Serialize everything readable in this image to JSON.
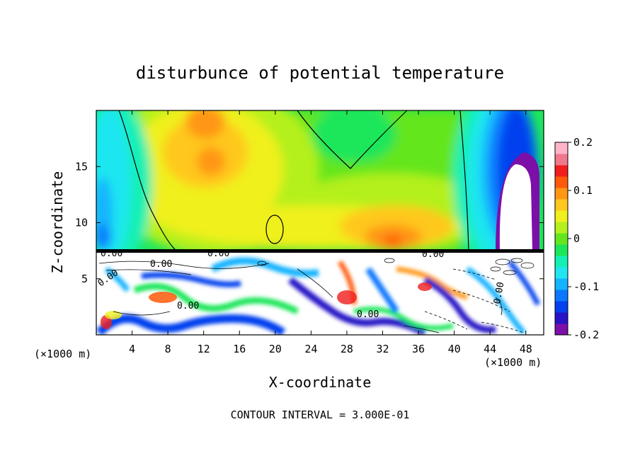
{
  "chart_data": {
    "type": "heatmap",
    "title": "disturbunce of potential temperature",
    "xlabel": "X-coordinate",
    "ylabel": "Z-coordinate",
    "x_unit_left": "(×1000 m)",
    "x_unit_right": "(×1000 m)",
    "xlim": [
      0,
      50
    ],
    "ylim": [
      0,
      20
    ],
    "x_ticks": [
      4,
      8,
      12,
      16,
      20,
      24,
      28,
      32,
      36,
      40,
      44,
      48
    ],
    "y_ticks": [
      5,
      10,
      15
    ],
    "colorbar": {
      "vmin": -0.2,
      "vmax": 0.2,
      "tick_labels": [
        "0.2",
        "0.1",
        "0",
        "-0.1",
        "-0.2"
      ],
      "tick_values": [
        0.2,
        0.1,
        0,
        -0.1,
        -0.2
      ],
      "colors": [
        "#7b0fa8",
        "#2813c6",
        "#0540ee",
        "#0b77ff",
        "#14b3ff",
        "#1fe6f0",
        "#14f0b4",
        "#1ee65a",
        "#64e61e",
        "#b4f01e",
        "#f0f01e",
        "#ffc81e",
        "#ff9614",
        "#ff5a0a",
        "#f01e1e",
        "#f0788c",
        "#ffb4c8"
      ]
    },
    "contour_labels": [
      "0.00",
      "0.00",
      "0.00",
      "0.00",
      "0.00",
      "0.00",
      "0.00",
      "0.00"
    ],
    "footer": "CONTOUR INTERVAL = 3.000E-01"
  }
}
